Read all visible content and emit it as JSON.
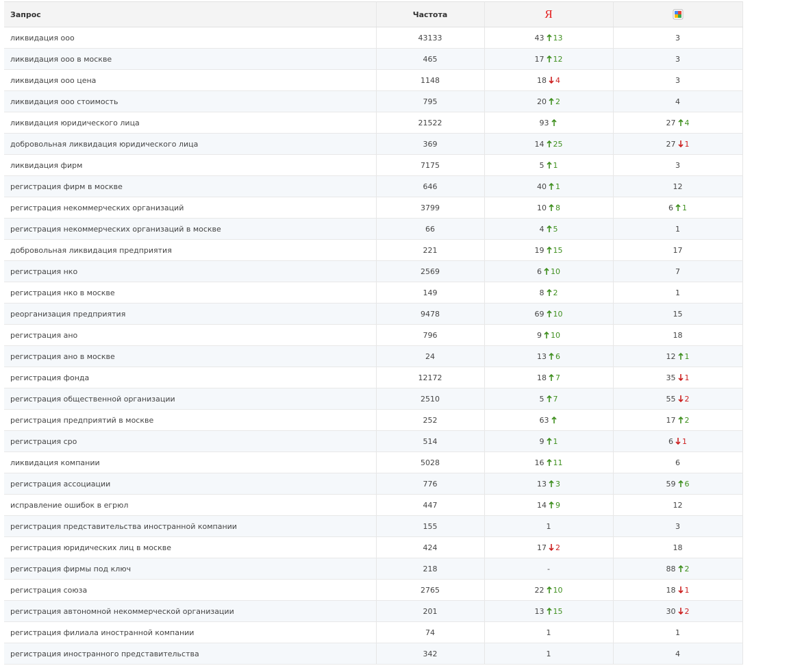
{
  "header": {
    "query": "Запрос",
    "frequency": "Частота",
    "yandex": "Я"
  },
  "trend_colors": {
    "up": "#3f8f1f",
    "down": "#cc1f1f"
  },
  "rows": [
    {
      "query": "ликвидация ооо",
      "frequency": 43133,
      "yandex": {
        "pos": 43,
        "dir": "up",
        "change": 13
      },
      "google": {
        "pos": 3
      }
    },
    {
      "query": "ликвидация ооо в москве",
      "frequency": 465,
      "yandex": {
        "pos": 17,
        "dir": "up",
        "change": 12
      },
      "google": {
        "pos": 3
      }
    },
    {
      "query": "ликвидация ооо цена",
      "frequency": 1148,
      "yandex": {
        "pos": 18,
        "dir": "down",
        "change": 4
      },
      "google": {
        "pos": 3
      }
    },
    {
      "query": "ликвидация ооо стоимость",
      "frequency": 795,
      "yandex": {
        "pos": 20,
        "dir": "up",
        "change": 2
      },
      "google": {
        "pos": 4
      }
    },
    {
      "query": "ликвидация юридического лица",
      "frequency": 21522,
      "yandex": {
        "pos": 93,
        "dir": "up"
      },
      "google": {
        "pos": 27,
        "dir": "up",
        "change": 4
      }
    },
    {
      "query": "добровольная ликвидация юридического лица",
      "frequency": 369,
      "yandex": {
        "pos": 14,
        "dir": "up",
        "change": 25
      },
      "google": {
        "pos": 27,
        "dir": "down",
        "change": 1
      }
    },
    {
      "query": "ликвидация фирм",
      "frequency": 7175,
      "yandex": {
        "pos": 5,
        "dir": "up",
        "change": 1
      },
      "google": {
        "pos": 3
      }
    },
    {
      "query": "регистрация фирм в москве",
      "frequency": 646,
      "yandex": {
        "pos": 40,
        "dir": "up",
        "change": 1
      },
      "google": {
        "pos": 12
      }
    },
    {
      "query": "регистрация некоммерческих организаций",
      "frequency": 3799,
      "yandex": {
        "pos": 10,
        "dir": "up",
        "change": 8
      },
      "google": {
        "pos": 6,
        "dir": "up",
        "change": 1
      }
    },
    {
      "query": "регистрация некоммерческих организаций в москве",
      "frequency": 66,
      "yandex": {
        "pos": 4,
        "dir": "up",
        "change": 5
      },
      "google": {
        "pos": 1
      }
    },
    {
      "query": "добровольная ликвидация предприятия",
      "frequency": 221,
      "yandex": {
        "pos": 19,
        "dir": "up",
        "change": 15
      },
      "google": {
        "pos": 17
      }
    },
    {
      "query": "регистрация нко",
      "frequency": 2569,
      "yandex": {
        "pos": 6,
        "dir": "up",
        "change": 10
      },
      "google": {
        "pos": 7
      }
    },
    {
      "query": "регистрация нко в москве",
      "frequency": 149,
      "yandex": {
        "pos": 8,
        "dir": "up",
        "change": 2
      },
      "google": {
        "pos": 1
      }
    },
    {
      "query": "реорганизация предприятия",
      "frequency": 9478,
      "yandex": {
        "pos": 69,
        "dir": "up",
        "change": 10
      },
      "google": {
        "pos": 15
      }
    },
    {
      "query": "регистрация ано",
      "frequency": 796,
      "yandex": {
        "pos": 9,
        "dir": "up",
        "change": 10
      },
      "google": {
        "pos": 18
      }
    },
    {
      "query": "регистрация ано в москве",
      "frequency": 24,
      "yandex": {
        "pos": 13,
        "dir": "up",
        "change": 6
      },
      "google": {
        "pos": 12,
        "dir": "up",
        "change": 1
      }
    },
    {
      "query": "регистрация фонда",
      "frequency": 12172,
      "yandex": {
        "pos": 18,
        "dir": "up",
        "change": 7
      },
      "google": {
        "pos": 35,
        "dir": "down",
        "change": 1
      }
    },
    {
      "query": "регистрация общественной организации",
      "frequency": 2510,
      "yandex": {
        "pos": 5,
        "dir": "up",
        "change": 7
      },
      "google": {
        "pos": 55,
        "dir": "down",
        "change": 2
      }
    },
    {
      "query": "регистрация предприятий в москве",
      "frequency": 252,
      "yandex": {
        "pos": 63,
        "dir": "up"
      },
      "google": {
        "pos": 17,
        "dir": "up",
        "change": 2
      }
    },
    {
      "query": "регистрация сро",
      "frequency": 514,
      "yandex": {
        "pos": 9,
        "dir": "up",
        "change": 1
      },
      "google": {
        "pos": 6,
        "dir": "down",
        "change": 1
      }
    },
    {
      "query": "ликвидация компании",
      "frequency": 5028,
      "yandex": {
        "pos": 16,
        "dir": "up",
        "change": 11
      },
      "google": {
        "pos": 6
      }
    },
    {
      "query": "регистрация ассоциации",
      "frequency": 776,
      "yandex": {
        "pos": 13,
        "dir": "up",
        "change": 3
      },
      "google": {
        "pos": 59,
        "dir": "up",
        "change": 6
      }
    },
    {
      "query": "исправление ошибок в егрюл",
      "frequency": 447,
      "yandex": {
        "pos": 14,
        "dir": "up",
        "change": 9
      },
      "google": {
        "pos": 12
      }
    },
    {
      "query": "регистрация представительства иностранной компании",
      "frequency": 155,
      "yandex": {
        "pos": 1
      },
      "google": {
        "pos": 3
      }
    },
    {
      "query": "регистрация юридических лиц в москве",
      "frequency": 424,
      "yandex": {
        "pos": 17,
        "dir": "down",
        "change": 2
      },
      "google": {
        "pos": 18
      }
    },
    {
      "query": "регистрация фирмы под ключ",
      "frequency": 218,
      "yandex": {
        "pos": "-"
      },
      "google": {
        "pos": 88,
        "dir": "up",
        "change": 2
      }
    },
    {
      "query": "регистрация союза",
      "frequency": 2765,
      "yandex": {
        "pos": 22,
        "dir": "up",
        "change": 10
      },
      "google": {
        "pos": 18,
        "dir": "down",
        "change": 1
      }
    },
    {
      "query": "регистрация автономной некоммерческой организации",
      "frequency": 201,
      "yandex": {
        "pos": 13,
        "dir": "up",
        "change": 15
      },
      "google": {
        "pos": 30,
        "dir": "down",
        "change": 2
      }
    },
    {
      "query": "регистрация филиала иностранной компании",
      "frequency": 74,
      "yandex": {
        "pos": 1
      },
      "google": {
        "pos": 1
      }
    },
    {
      "query": "регистрация иностранного представительства",
      "frequency": 342,
      "yandex": {
        "pos": 1
      },
      "google": {
        "pos": 4
      }
    }
  ]
}
